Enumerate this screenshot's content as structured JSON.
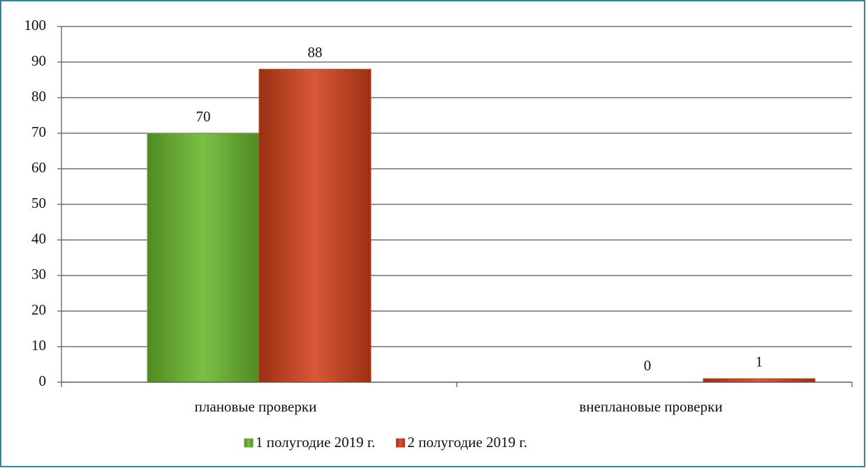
{
  "chart_data": {
    "type": "bar",
    "categories": [
      "плановые проверки",
      "внеплановые проверки"
    ],
    "series": [
      {
        "name": "1 полугодие 2019 г.",
        "color": "#6aa532",
        "values": [
          70,
          0
        ]
      },
      {
        "name": "2 полугодие 2019 г.",
        "color": "#c0441f",
        "values": [
          88,
          1
        ]
      }
    ],
    "ylim": [
      0,
      100
    ],
    "yticks": [
      0,
      10,
      20,
      30,
      40,
      50,
      60,
      70,
      80,
      90,
      100
    ],
    "grid": true,
    "legend": "bottom"
  }
}
